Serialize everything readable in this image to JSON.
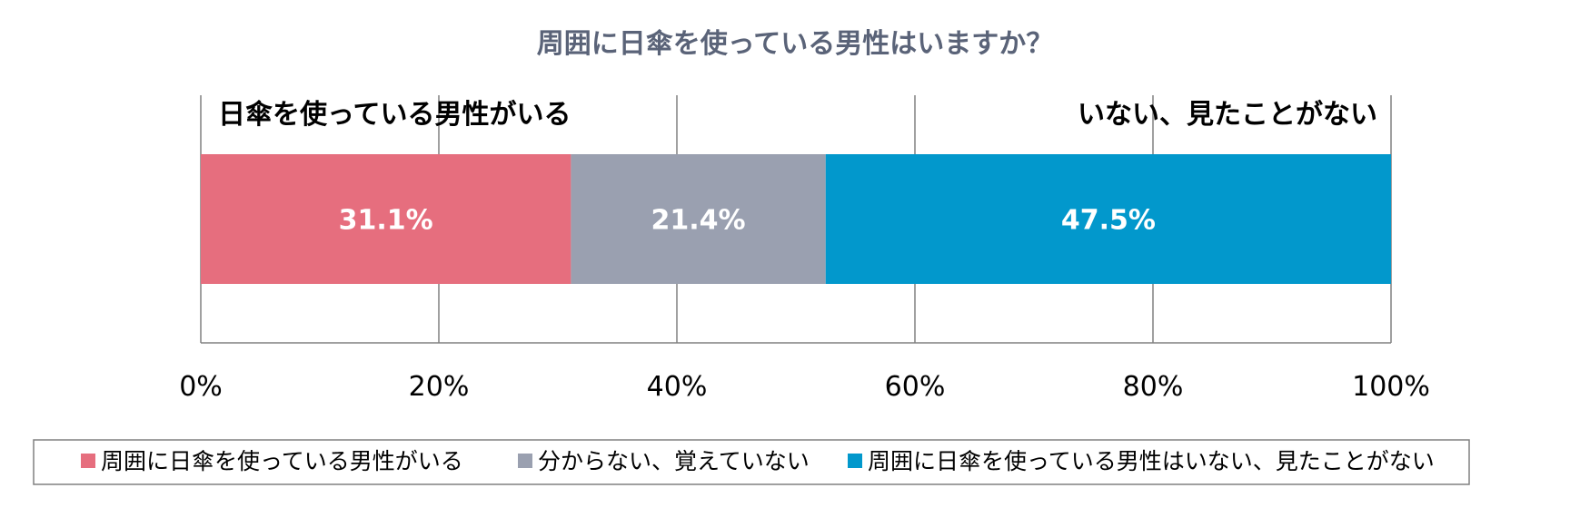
{
  "chart_data": {
    "type": "bar",
    "orientation": "horizontal",
    "stacked": true,
    "title": "周囲に日傘を使っている男性はいますか？",
    "series": [
      {
        "name": "周囲に日傘を使っている男性がいる",
        "value": 31.1,
        "label": "31.1%",
        "color": "#E66E7E"
      },
      {
        "name": "分からない、覚えていない",
        "value": 21.4,
        "label": "21.4%",
        "color": "#9AA0B0"
      },
      {
        "name": "周囲に日傘を使っている男性はいない、見たことがない",
        "value": 47.5,
        "label": "47.5%",
        "color": "#0298CC"
      }
    ],
    "xlim": [
      0,
      100
    ],
    "x_ticks": [
      "0%",
      "20%",
      "40%",
      "60%",
      "80%",
      "100%"
    ],
    "grid": true,
    "legend_position": "bottom",
    "annotations": {
      "left": "日傘を使っている男性がいる",
      "right": "いない、見たことがない"
    }
  },
  "colors": {
    "title": "#5A6378",
    "grid": "#808080",
    "annotation": "#000000",
    "bar_label": "#ffffff"
  }
}
